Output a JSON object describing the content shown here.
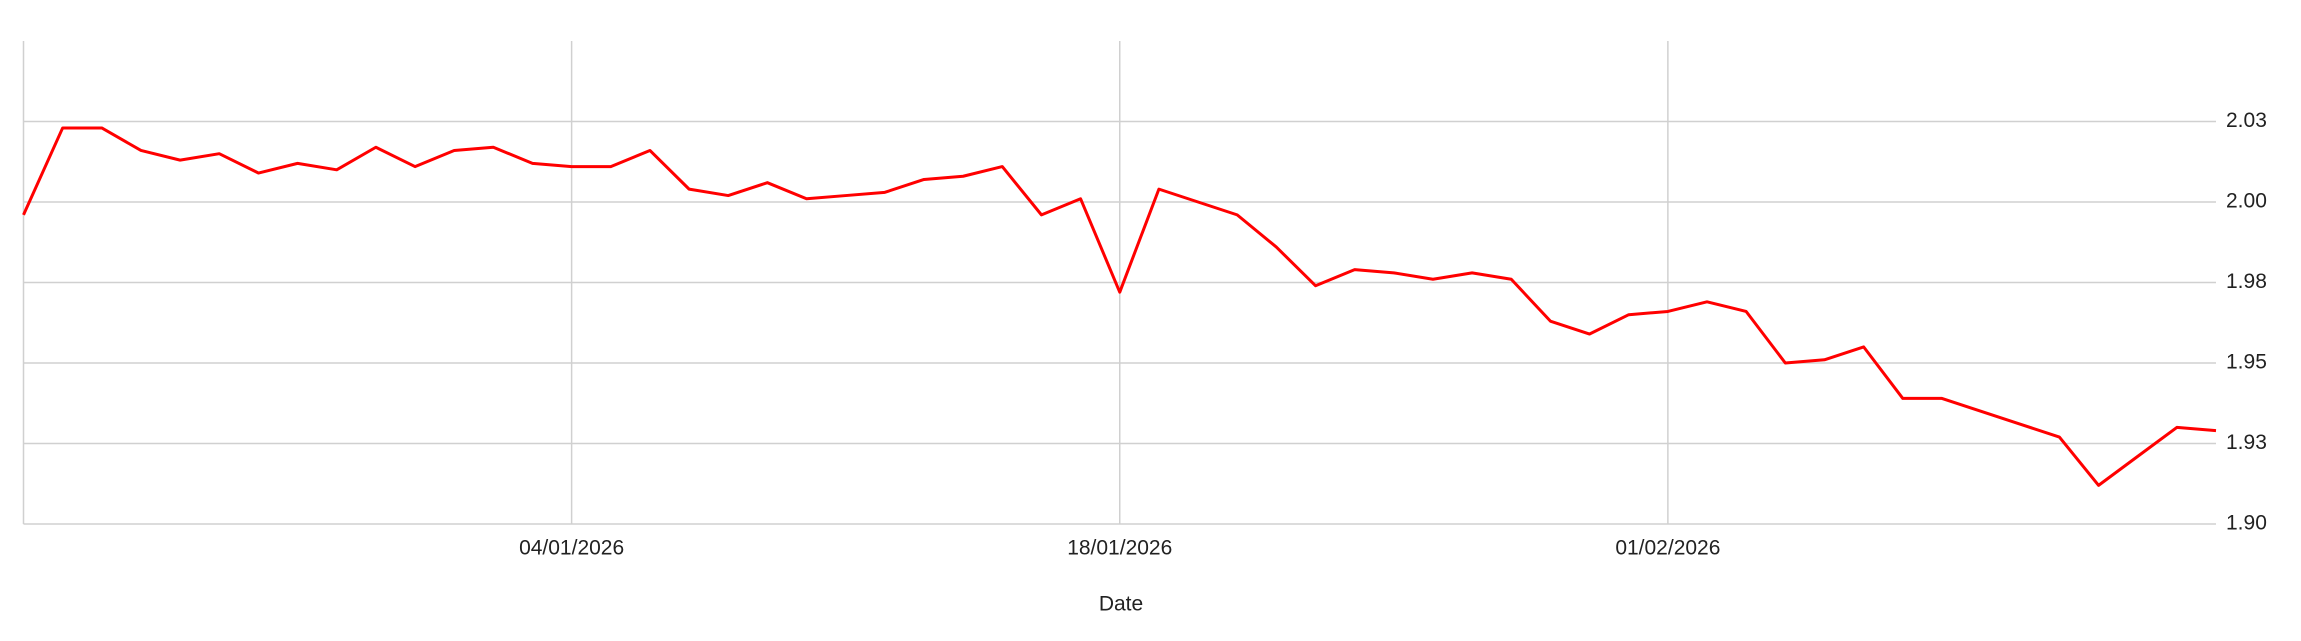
{
  "chart_data": {
    "type": "line",
    "x_label": "Date",
    "color": "#ff0000",
    "grid": true,
    "x": [
      "21/12/2025",
      "22/12/2025",
      "23/12/2025",
      "24/12/2025",
      "25/12/2025",
      "26/12/2025",
      "27/12/2025",
      "28/12/2025",
      "29/12/2025",
      "30/12/2025",
      "31/12/2025",
      "01/01/2026",
      "02/01/2026",
      "03/01/2026",
      "04/01/2026",
      "05/01/2026",
      "06/01/2026",
      "07/01/2026",
      "08/01/2026",
      "09/01/2026",
      "10/01/2026",
      "11/01/2026",
      "12/01/2026",
      "13/01/2026",
      "14/01/2026",
      "15/01/2026",
      "16/01/2026",
      "17/01/2026",
      "18/01/2026",
      "19/01/2026",
      "20/01/2026",
      "21/01/2026",
      "22/01/2026",
      "23/01/2026",
      "24/01/2026",
      "25/01/2026",
      "26/01/2026",
      "27/01/2026",
      "28/01/2026",
      "29/01/2026",
      "30/01/2026",
      "31/01/2026",
      "01/02/2026",
      "02/02/2026",
      "03/02/2026",
      "04/02/2026",
      "05/02/2026",
      "06/02/2026",
      "07/02/2026",
      "08/02/2026",
      "09/02/2026",
      "10/02/2026",
      "11/02/2026",
      "12/02/2026",
      "13/02/2026",
      "14/02/2026",
      "15/02/2026"
    ],
    "values": [
      1.996,
      2.023,
      2.023,
      2.016,
      2.013,
      2.015,
      2.009,
      2.012,
      2.01,
      2.017,
      2.011,
      2.016,
      2.017,
      2.012,
      2.011,
      2.011,
      2.016,
      2.004,
      2.002,
      2.006,
      2.001,
      2.002,
      2.003,
      2.007,
      2.008,
      2.011,
      1.996,
      2.001,
      1.972,
      2.004,
      2.0,
      1.996,
      1.986,
      1.974,
      1.979,
      1.978,
      1.976,
      1.978,
      1.976,
      1.963,
      1.959,
      1.965,
      1.966,
      1.969,
      1.966,
      1.95,
      1.951,
      1.955,
      1.939,
      1.939,
      1.935,
      1.931,
      1.927,
      1.912,
      1.921,
      1.93,
      1.929
    ],
    "xlim": [
      "21/12/2025",
      "15/02/2026"
    ],
    "xticks": [
      "04/01/2026",
      "18/01/2026",
      "01/02/2026"
    ],
    "ylim": [
      1.9,
      2.05
    ],
    "yticks": [
      {
        "value": 1.9,
        "label": "1.90"
      },
      {
        "value": 1.925,
        "label": "1.93"
      },
      {
        "value": 1.95,
        "label": "1.95"
      },
      {
        "value": 1.975,
        "label": "1.98"
      },
      {
        "value": 2.0,
        "label": "2.00"
      },
      {
        "value": 2.025,
        "label": "2.03"
      }
    ]
  }
}
